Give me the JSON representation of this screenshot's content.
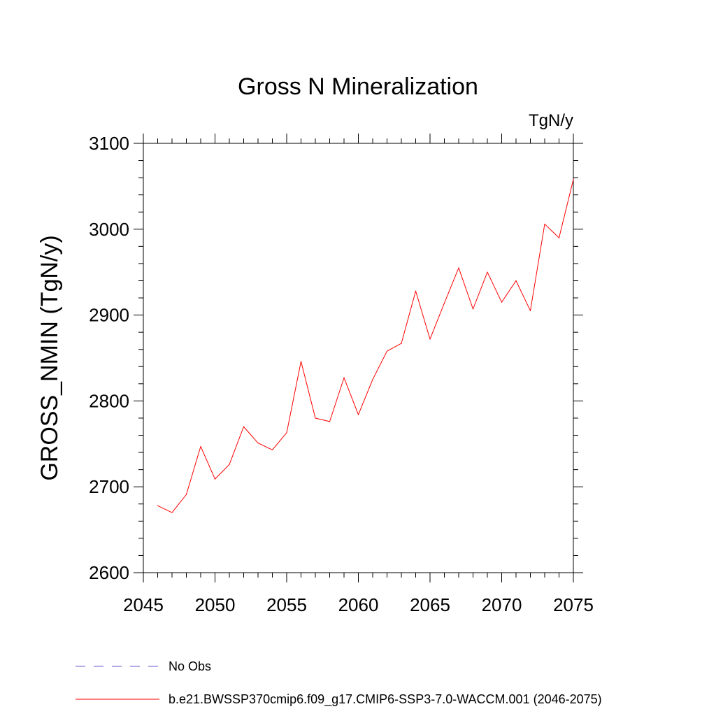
{
  "chart_data": {
    "type": "line",
    "title": "Gross N Mineralization",
    "units_label": "TgN/y",
    "ylabel": "GROSS_NMIN  (TgN/y)",
    "xlabel": "",
    "xlim": [
      2045,
      2075
    ],
    "ylim": [
      2600,
      3100
    ],
    "xticks": [
      2045,
      2050,
      2055,
      2060,
      2065,
      2070,
      2075
    ],
    "yticks": [
      2600,
      2700,
      2800,
      2900,
      3000,
      3100
    ],
    "x_minor_step": 1,
    "y_minor_step": 20,
    "grid": false,
    "legend_position": "bottom-left",
    "series": [
      {
        "name": "b.e21.BWSSP370cmip6.f09_g17.CMIP6-SSP3-7.0-WACCM.001 (2046-2075)",
        "color": "#ff0000",
        "style": "solid",
        "x": [
          2046,
          2047,
          2048,
          2049,
          2050,
          2051,
          2052,
          2053,
          2054,
          2055,
          2056,
          2057,
          2058,
          2059,
          2060,
          2061,
          2062,
          2063,
          2064,
          2065,
          2066,
          2067,
          2068,
          2069,
          2070,
          2071,
          2072,
          2073,
          2074,
          2075
        ],
        "values": [
          2678,
          2670,
          2691,
          2747,
          2709,
          2726,
          2770,
          2751,
          2743,
          2763,
          2846,
          2780,
          2776,
          2827,
          2784,
          2825,
          2858,
          2867,
          2928,
          2872,
          2914,
          2955,
          2907,
          2950,
          2915,
          2940,
          2905,
          3006,
          2990,
          3058
        ]
      }
    ],
    "legend": [
      {
        "label": "No Obs",
        "color": "#6a5acd",
        "style": "dashed"
      },
      {
        "label": "b.e21.BWSSP370cmip6.f09_g17.CMIP6-SSP3-7.0-WACCM.001 (2046-2075)",
        "color": "#ff0000",
        "style": "solid"
      }
    ]
  }
}
